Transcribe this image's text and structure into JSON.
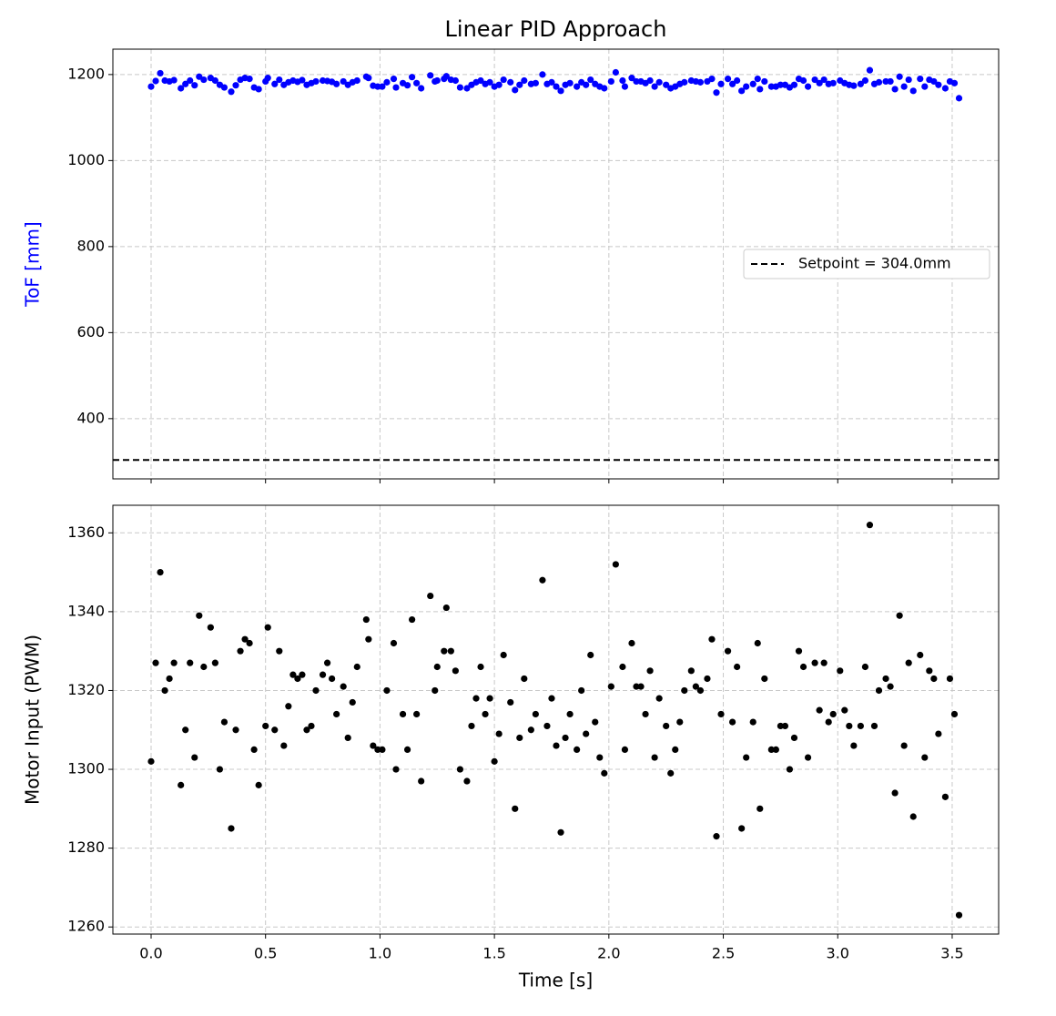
{
  "chart_data": [
    {
      "type": "scatter",
      "title": "Linear PID Approach",
      "ylabel": "ToF [mm]",
      "ylabel_color": "#0000ff",
      "xlim": [
        -0.167,
        3.703
      ],
      "xticks": [
        0,
        0.5,
        1,
        1.5,
        2,
        2.5,
        3,
        3.5
      ],
      "show_xticklabels": false,
      "ylim": [
        260,
        1259
      ],
      "yticks": [
        400,
        600,
        800,
        1000,
        1200
      ],
      "grid": true,
      "legend": "center right",
      "x": [
        0.0,
        0.02,
        0.04,
        0.06,
        0.08,
        0.1,
        0.13,
        0.15,
        0.17,
        0.19,
        0.21,
        0.23,
        0.26,
        0.28,
        0.3,
        0.32,
        0.35,
        0.37,
        0.39,
        0.41,
        0.43,
        0.45,
        0.47,
        0.5,
        0.51,
        0.54,
        0.56,
        0.58,
        0.6,
        0.62,
        0.64,
        0.66,
        0.68,
        0.7,
        0.72,
        0.75,
        0.77,
        0.79,
        0.81,
        0.84,
        0.86,
        0.88,
        0.9,
        0.94,
        0.95,
        0.97,
        0.99,
        1.01,
        1.03,
        1.06,
        1.07,
        1.1,
        1.12,
        1.14,
        1.16,
        1.18,
        1.22,
        1.24,
        1.25,
        1.28,
        1.29,
        1.31,
        1.33,
        1.35,
        1.38,
        1.4,
        1.42,
        1.44,
        1.46,
        1.48,
        1.5,
        1.52,
        1.54,
        1.57,
        1.59,
        1.61,
        1.63,
        1.66,
        1.68,
        1.71,
        1.73,
        1.75,
        1.77,
        1.79,
        1.81,
        1.83,
        1.86,
        1.88,
        1.9,
        1.92,
        1.94,
        1.96,
        1.98,
        2.01,
        2.03,
        2.06,
        2.07,
        2.1,
        2.12,
        2.14,
        2.16,
        2.18,
        2.2,
        2.22,
        2.25,
        2.27,
        2.29,
        2.31,
        2.33,
        2.36,
        2.38,
        2.4,
        2.43,
        2.45,
        2.47,
        2.49,
        2.52,
        2.54,
        2.56,
        2.58,
        2.6,
        2.63,
        2.65,
        2.66,
        2.68,
        2.71,
        2.73,
        2.75,
        2.77,
        2.79,
        2.81,
        2.83,
        2.85,
        2.87,
        2.9,
        2.92,
        2.94,
        2.96,
        2.98,
        3.01,
        3.03,
        3.05,
        3.07,
        3.1,
        3.12,
        3.14,
        3.16,
        3.18,
        3.21,
        3.23,
        3.25,
        3.27,
        3.29,
        3.31,
        3.33,
        3.36,
        3.38,
        3.4,
        3.42,
        3.44,
        3.47,
        3.49,
        3.51,
        3.53
      ],
      "series": [
        {
          "color": "#0000ff",
          "values": [
            1172,
            1185,
            1203,
            1186,
            1184,
            1187,
            1168,
            1178,
            1186,
            1175,
            1195,
            1188,
            1192,
            1186,
            1176,
            1170,
            1160,
            1175,
            1188,
            1192,
            1190,
            1170,
            1166,
            1184,
            1192,
            1178,
            1188,
            1176,
            1182,
            1186,
            1183,
            1187,
            1176,
            1180,
            1184,
            1186,
            1185,
            1183,
            1178,
            1184,
            1176,
            1182,
            1186,
            1195,
            1192,
            1174,
            1172,
            1172,
            1182,
            1190,
            1170,
            1180,
            1175,
            1194,
            1180,
            1168,
            1198,
            1184,
            1186,
            1190,
            1196,
            1188,
            1186,
            1170,
            1168,
            1176,
            1182,
            1186,
            1178,
            1182,
            1172,
            1176,
            1188,
            1182,
            1164,
            1176,
            1186,
            1178,
            1180,
            1200,
            1178,
            1182,
            1172,
            1162,
            1176,
            1180,
            1172,
            1182,
            1176,
            1188,
            1178,
            1172,
            1168,
            1184,
            1205,
            1186,
            1172,
            1192,
            1184,
            1184,
            1180,
            1186,
            1172,
            1182,
            1176,
            1168,
            1172,
            1178,
            1182,
            1186,
            1184,
            1182,
            1184,
            1190,
            1158,
            1178,
            1190,
            1178,
            1186,
            1162,
            1172,
            1178,
            1190,
            1166,
            1184,
            1172,
            1172,
            1176,
            1176,
            1170,
            1176,
            1190,
            1186,
            1172,
            1188,
            1180,
            1188,
            1178,
            1180,
            1186,
            1180,
            1176,
            1174,
            1178,
            1186,
            1210,
            1178,
            1182,
            1184,
            1184,
            1166,
            1195,
            1172,
            1188,
            1162,
            1190,
            1172,
            1188,
            1184,
            1176,
            1168,
            1184,
            1180,
            1145
          ]
        }
      ],
      "reference_lines": [
        {
          "value": 304,
          "label": "Setpoint = 304.0mm",
          "color": "#000000",
          "style": "dashed"
        }
      ]
    },
    {
      "type": "scatter",
      "xlabel": "Time [s]",
      "ylabel": "Motor Input (PWM)",
      "xlim": [
        -0.167,
        3.703
      ],
      "xticks": [
        {
          "value": 0,
          "label": "0.0"
        },
        0.5,
        {
          "value": 1,
          "label": "1.0"
        },
        1.5,
        {
          "value": 2,
          "label": "2.0"
        },
        2.5,
        {
          "value": 3,
          "label": "3.0"
        },
        3.5
      ],
      "ylim": [
        1258.2,
        1367
      ],
      "yticks": [
        1260,
        1280,
        1300,
        1320,
        1340,
        1360
      ],
      "grid": true,
      "x": [
        0.0,
        0.02,
        0.04,
        0.06,
        0.08,
        0.1,
        0.13,
        0.15,
        0.17,
        0.19,
        0.21,
        0.23,
        0.26,
        0.28,
        0.3,
        0.32,
        0.35,
        0.37,
        0.39,
        0.41,
        0.43,
        0.45,
        0.47,
        0.5,
        0.51,
        0.54,
        0.56,
        0.58,
        0.6,
        0.62,
        0.64,
        0.66,
        0.68,
        0.7,
        0.72,
        0.75,
        0.77,
        0.79,
        0.81,
        0.84,
        0.86,
        0.88,
        0.9,
        0.94,
        0.95,
        0.97,
        0.99,
        1.01,
        1.03,
        1.06,
        1.07,
        1.1,
        1.12,
        1.14,
        1.16,
        1.18,
        1.22,
        1.24,
        1.25,
        1.28,
        1.29,
        1.31,
        1.33,
        1.35,
        1.38,
        1.4,
        1.42,
        1.44,
        1.46,
        1.48,
        1.5,
        1.52,
        1.54,
        1.57,
        1.59,
        1.61,
        1.63,
        1.66,
        1.68,
        1.71,
        1.73,
        1.75,
        1.77,
        1.79,
        1.81,
        1.83,
        1.86,
        1.88,
        1.9,
        1.92,
        1.94,
        1.96,
        1.98,
        2.01,
        2.03,
        2.06,
        2.07,
        2.1,
        2.12,
        2.14,
        2.16,
        2.18,
        2.2,
        2.22,
        2.25,
        2.27,
        2.29,
        2.31,
        2.33,
        2.36,
        2.38,
        2.4,
        2.43,
        2.45,
        2.47,
        2.49,
        2.52,
        2.54,
        2.56,
        2.58,
        2.6,
        2.63,
        2.65,
        2.66,
        2.68,
        2.71,
        2.73,
        2.75,
        2.77,
        2.79,
        2.81,
        2.83,
        2.85,
        2.87,
        2.9,
        2.92,
        2.94,
        2.96,
        2.98,
        3.01,
        3.03,
        3.05,
        3.07,
        3.1,
        3.12,
        3.14,
        3.16,
        3.18,
        3.21,
        3.23,
        3.25,
        3.27,
        3.29,
        3.31,
        3.33,
        3.36,
        3.38,
        3.4,
        3.42,
        3.44,
        3.47,
        3.49,
        3.51,
        3.53
      ],
      "series": [
        {
          "color": "#000000",
          "values": [
            1302,
            1327,
            1350,
            1320,
            1323,
            1327,
            1296,
            1310,
            1327,
            1303,
            1339,
            1326,
            1336,
            1327,
            1300,
            1312,
            1285,
            1310,
            1330,
            1333,
            1332,
            1305,
            1296,
            1311,
            1336,
            1310,
            1330,
            1306,
            1316,
            1324,
            1323,
            1324,
            1310,
            1311,
            1320,
            1324,
            1327,
            1323,
            1314,
            1321,
            1308,
            1317,
            1326,
            1338,
            1333,
            1306,
            1305,
            1305,
            1320,
            1332,
            1300,
            1314,
            1305,
            1338,
            1314,
            1297,
            1344,
            1320,
            1326,
            1330,
            1341,
            1330,
            1325,
            1300,
            1297,
            1311,
            1318,
            1326,
            1314,
            1318,
            1302,
            1309,
            1329,
            1317,
            1290,
            1308,
            1323,
            1310,
            1314,
            1348,
            1311,
            1318,
            1306,
            1284,
            1308,
            1314,
            1305,
            1320,
            1309,
            1329,
            1312,
            1303,
            1299,
            1321,
            1352,
            1326,
            1305,
            1332,
            1321,
            1321,
            1314,
            1325,
            1303,
            1318,
            1311,
            1299,
            1305,
            1312,
            1320,
            1325,
            1321,
            1320,
            1323,
            1333,
            1283,
            1314,
            1330,
            1312,
            1326,
            1285,
            1303,
            1312,
            1332,
            1290,
            1323,
            1305,
            1305,
            1311,
            1311,
            1300,
            1308,
            1330,
            1326,
            1303,
            1327,
            1315,
            1327,
            1312,
            1314,
            1325,
            1315,
            1311,
            1306,
            1311,
            1326,
            1362,
            1311,
            1320,
            1323,
            1321,
            1294,
            1339,
            1306,
            1327,
            1288,
            1329,
            1303,
            1325,
            1323,
            1309,
            1293,
            1323,
            1314,
            1263
          ]
        }
      ]
    }
  ]
}
